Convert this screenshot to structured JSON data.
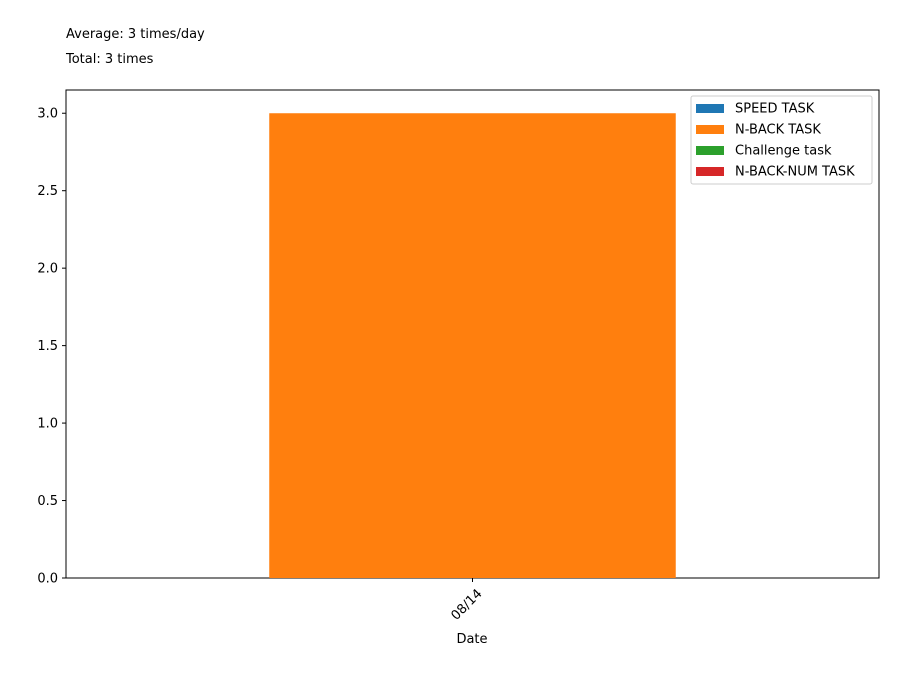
{
  "summary": {
    "average": "Average: 3 times/day",
    "total": "Total: 3 times"
  },
  "chart_data": {
    "type": "bar",
    "stacked": true,
    "categories": [
      "08/14"
    ],
    "series": [
      {
        "name": "SPEED TASK",
        "values": [
          0
        ],
        "color": "#1f77b4"
      },
      {
        "name": "N-BACK TASK",
        "values": [
          3
        ],
        "color": "#ff7f0e"
      },
      {
        "name": "Challenge task",
        "values": [
          0
        ],
        "color": "#2ca02c"
      },
      {
        "name": "N-BACK-NUM TASK",
        "values": [
          0
        ],
        "color": "#d62728"
      }
    ],
    "title": "",
    "xlabel": "Date",
    "ylabel": "",
    "ylim": [
      0,
      3.15
    ],
    "yticks": [
      "0.0",
      "0.5",
      "1.0",
      "1.5",
      "2.0",
      "2.5",
      "3.0"
    ],
    "xtick_rotation": "45 degrees",
    "grid": false,
    "legend_position": "top-right"
  }
}
